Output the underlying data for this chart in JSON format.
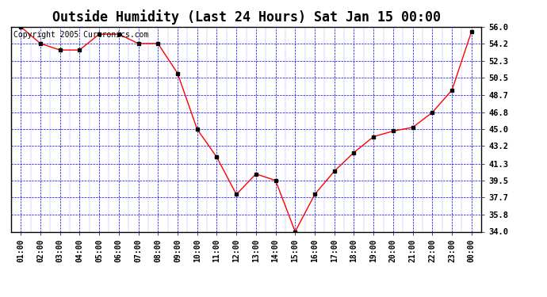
{
  "title": "Outside Humidity (Last 24 Hours) Sat Jan 15 00:00",
  "copyright": "Copyright 2005 Curtronics.com",
  "x_labels": [
    "01:00",
    "02:00",
    "03:00",
    "04:00",
    "05:00",
    "06:00",
    "07:00",
    "08:00",
    "09:00",
    "10:00",
    "11:00",
    "12:00",
    "13:00",
    "14:00",
    "15:00",
    "16:00",
    "17:00",
    "18:00",
    "19:00",
    "20:00",
    "21:00",
    "22:00",
    "23:00",
    "00:00"
  ],
  "x_values": [
    1,
    2,
    3,
    4,
    5,
    6,
    7,
    8,
    9,
    10,
    11,
    12,
    13,
    14,
    15,
    16,
    17,
    18,
    19,
    20,
    21,
    22,
    23,
    24
  ],
  "y_values": [
    56.0,
    54.2,
    53.5,
    53.5,
    55.2,
    55.2,
    54.2,
    54.2,
    51.0,
    45.0,
    42.0,
    38.0,
    40.2,
    39.5,
    34.0,
    38.0,
    40.5,
    42.5,
    44.2,
    44.8,
    45.2,
    46.8,
    49.2,
    55.5
  ],
  "y_ticks": [
    34.0,
    35.8,
    37.7,
    39.5,
    41.3,
    43.2,
    45.0,
    46.8,
    48.7,
    50.5,
    52.3,
    54.2,
    56.0
  ],
  "y_min": 34.0,
  "y_max": 56.0,
  "line_color": "red",
  "marker_color": "black",
  "bg_color": "#ffffff",
  "grid_color": "blue",
  "title_fontsize": 12,
  "copyright_fontsize": 7
}
